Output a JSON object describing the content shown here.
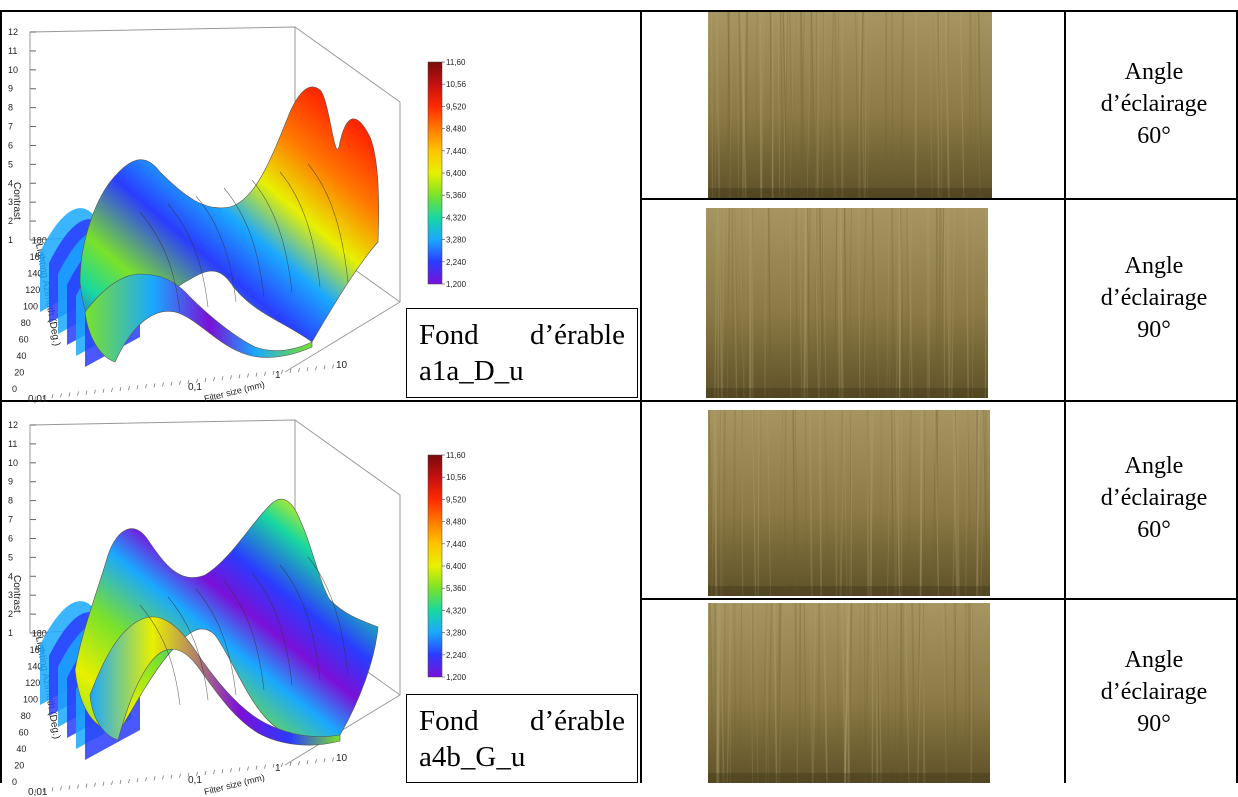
{
  "panels": [
    {
      "caption_line1_a": "Fond",
      "caption_line1_b": "d’érable",
      "caption_line2": "a1a_D_u",
      "angles": [
        {
          "line1": "Angle",
          "line2": "d’éclairage",
          "line3": "60°"
        },
        {
          "line1": "Angle",
          "line2": "d’éclairage",
          "line3": "90°"
        }
      ]
    },
    {
      "caption_line1_a": "Fond",
      "caption_line1_b": "d’érable",
      "caption_line2": "a4b_G_u",
      "angles": [
        {
          "line1": "Angle",
          "line2": "d’éclairage",
          "line3": "60°"
        },
        {
          "line1": "Angle",
          "line2": "d’éclairage",
          "line3": "90°"
        }
      ]
    }
  ],
  "plot_labels": {
    "z_axis_title": "Contrast",
    "y_axis_title": "Lighting Azimuth (Deg.)",
    "x_axis_title": "Filter size (mm)",
    "z_ticks": [
      "1",
      "2",
      "3",
      "4",
      "5",
      "6",
      "7",
      "8",
      "9",
      "10",
      "11",
      "12"
    ],
    "y_ticks": [
      "0",
      "20",
      "40",
      "60",
      "80",
      "100",
      "120",
      "140",
      "160",
      "180"
    ],
    "x_ticks": [
      "0,01",
      "0,1",
      "1",
      "10"
    ],
    "colorbar_ticks": [
      "11,60",
      "10,56",
      "9,520",
      "8,480",
      "7,440",
      "6,400",
      "5,360",
      "4,320",
      "3,280",
      "2,240",
      "1,200"
    ]
  },
  "colors": {
    "colorbar": [
      "#7a0a0a",
      "#c41010",
      "#ff2a00",
      "#ff7a00",
      "#ffc400",
      "#e8f000",
      "#7ae22a",
      "#18d8a0",
      "#1aa8ff",
      "#2a3cff",
      "#7a10d8"
    ],
    "photo_base": "#8b7a45",
    "photo_light": "#a69560",
    "photo_dark": "#5e5128"
  }
}
